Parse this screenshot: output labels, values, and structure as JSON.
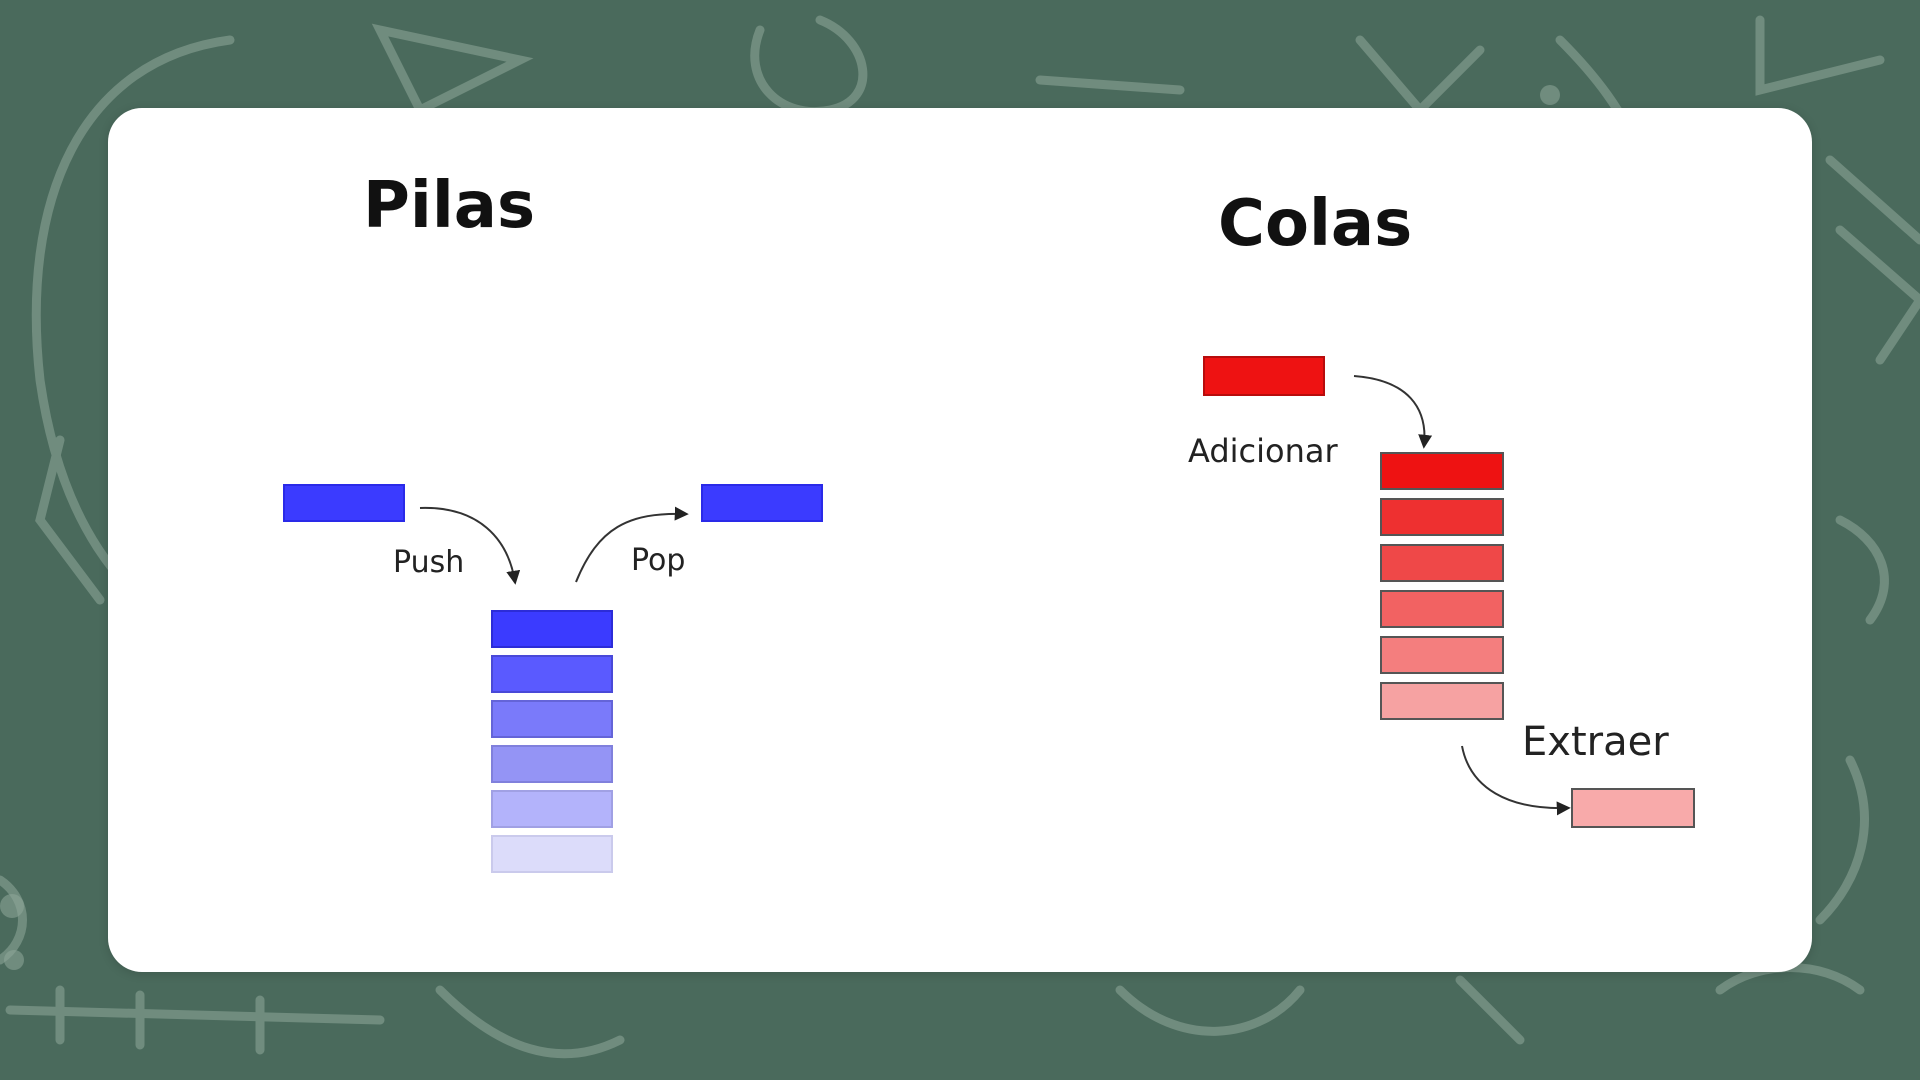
{
  "stacks": {
    "title": "Pilas",
    "push_label": "Push",
    "pop_label": "Pop",
    "color": "#3d3dff",
    "stack_shades": [
      "#3b3bff",
      "#5a5aff",
      "#7a7afa",
      "#9494f5",
      "#b3b3fb",
      "#dcdcfa"
    ]
  },
  "queues": {
    "title": "Colas",
    "add_label": "Adicionar",
    "extract_label": "Extraer",
    "color": "#ee0f0f",
    "queue_shades": [
      "#ee1212",
      "#ee3030",
      "#ef4848",
      "#f26262",
      "#f47e7e",
      "#f6a2a2"
    ],
    "extracted_color": "#f8aaaa"
  },
  "background": {
    "board_color": "#4a6a5c",
    "chalk_color": "#8fa89b"
  }
}
